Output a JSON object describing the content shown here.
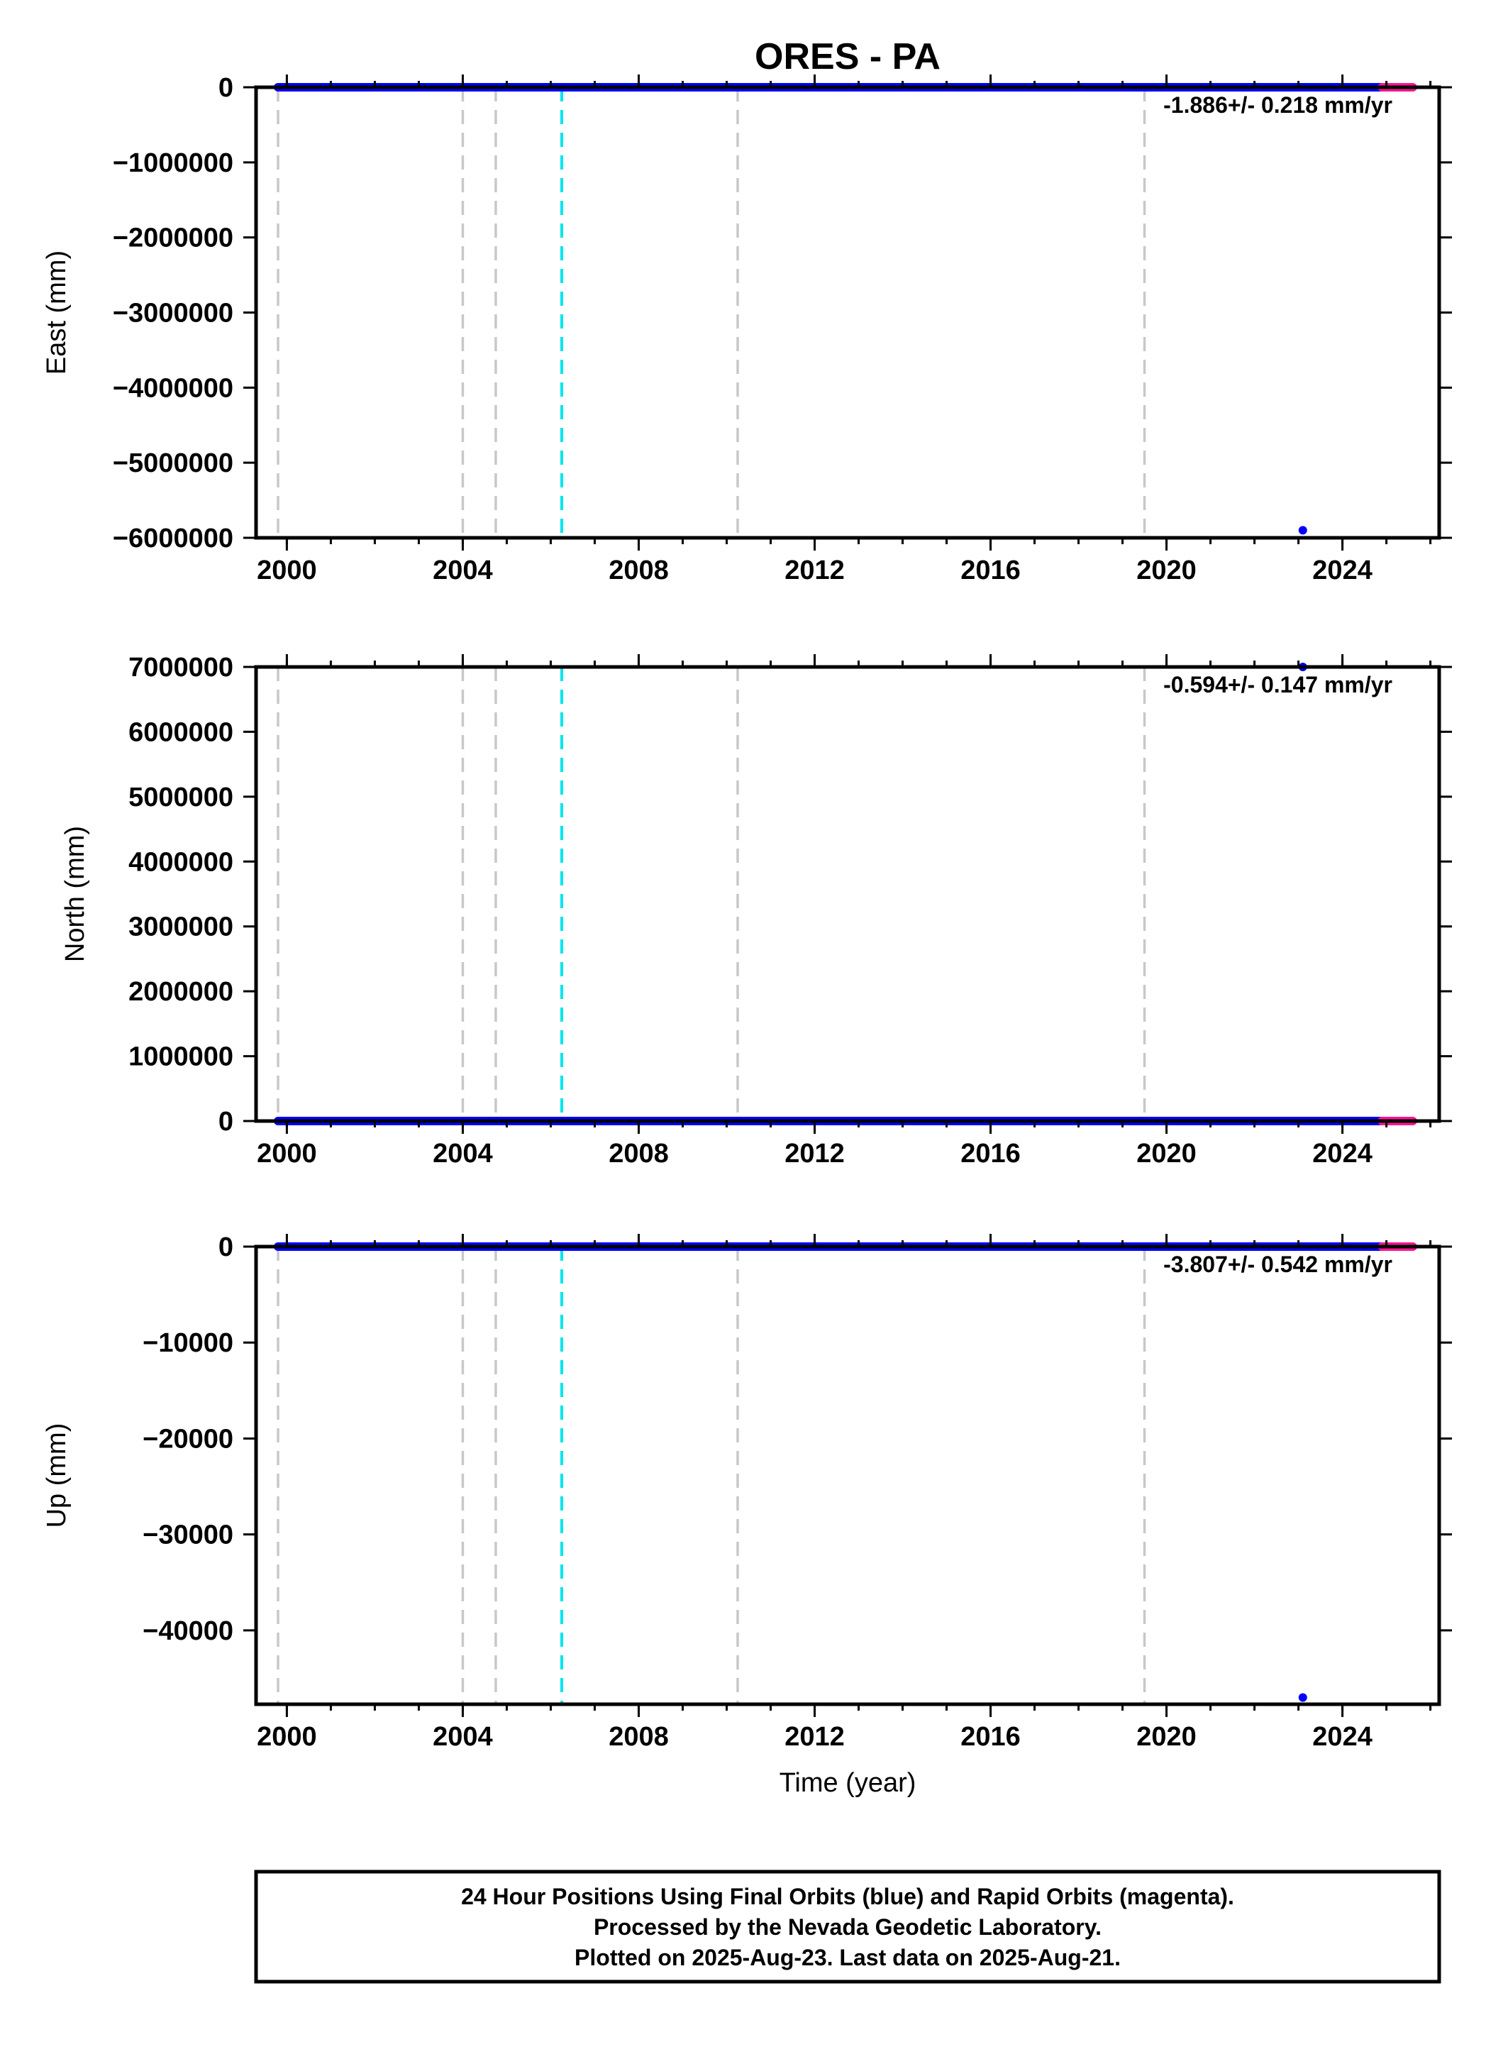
{
  "chart_data": [
    {
      "type": "scatter",
      "title": "ORES - PA",
      "xlabel": "",
      "ylabel": "East (mm)",
      "xlim": [
        1999.3,
        2026.2
      ],
      "ylim": [
        -6000000,
        0
      ],
      "x_ticks": [
        2000,
        2004,
        2008,
        2012,
        2016,
        2020,
        2024
      ],
      "x_tick_labels": [
        "2000",
        "2004",
        "2008",
        "2012",
        "2016",
        "2020",
        "2024"
      ],
      "y_ticks": [
        0,
        -1000000,
        -2000000,
        -3000000,
        -4000000,
        -5000000,
        -6000000
      ],
      "y_tick_labels": [
        "0",
        "−1000000",
        "−2000000",
        "−3000000",
        "−4000000",
        "−5000000",
        "−6000000"
      ],
      "rate_text": "-1.886+/- 0.218 mm/yr",
      "series": [
        {
          "name": "Final Orbits",
          "color": "#0000ff",
          "x_start": 1999.8,
          "x_end": 2025.3,
          "y": 0,
          "outliers": [
            {
              "x": 2023.1,
              "y": -5900000
            }
          ]
        },
        {
          "name": "Rapid Orbits",
          "color": "#ff1493",
          "x_start": 2024.9,
          "x_end": 2025.6,
          "y": 0
        }
      ],
      "vlines": [
        {
          "x": 1999.8,
          "color": "#c8c8c8"
        },
        {
          "x": 2004.0,
          "color": "#c8c8c8"
        },
        {
          "x": 2004.75,
          "color": "#c8c8c8"
        },
        {
          "x": 2006.25,
          "color": "#00e5ee"
        },
        {
          "x": 2010.25,
          "color": "#c8c8c8"
        },
        {
          "x": 2019.5,
          "color": "#c8c8c8"
        }
      ]
    },
    {
      "type": "scatter",
      "title": "",
      "xlabel": "",
      "ylabel": "North (mm)",
      "xlim": [
        1999.3,
        2026.2
      ],
      "ylim": [
        0,
        7000000
      ],
      "x_ticks": [
        2000,
        2004,
        2008,
        2012,
        2016,
        2020,
        2024
      ],
      "x_tick_labels": [
        "2000",
        "2004",
        "2008",
        "2012",
        "2016",
        "2020",
        "2024"
      ],
      "y_ticks": [
        7000000,
        6000000,
        5000000,
        4000000,
        3000000,
        2000000,
        1000000,
        0
      ],
      "y_tick_labels": [
        "7000000",
        "6000000",
        "5000000",
        "4000000",
        "3000000",
        "2000000",
        "1000000",
        "0"
      ],
      "rate_text": "-0.594+/- 0.147 mm/yr",
      "series": [
        {
          "name": "Final Orbits",
          "color": "#0000ff",
          "x_start": 1999.8,
          "x_end": 2025.3,
          "y": 0,
          "outliers": [
            {
              "x": 2023.1,
              "y": 7000000
            }
          ]
        },
        {
          "name": "Rapid Orbits",
          "color": "#ff1493",
          "x_start": 2024.9,
          "x_end": 2025.6,
          "y": 0
        }
      ],
      "vlines": [
        {
          "x": 1999.8,
          "color": "#c8c8c8"
        },
        {
          "x": 2004.0,
          "color": "#c8c8c8"
        },
        {
          "x": 2004.75,
          "color": "#c8c8c8"
        },
        {
          "x": 2006.25,
          "color": "#00e5ee"
        },
        {
          "x": 2010.25,
          "color": "#c8c8c8"
        },
        {
          "x": 2019.5,
          "color": "#c8c8c8"
        }
      ]
    },
    {
      "type": "scatter",
      "title": "",
      "xlabel": "Time (year)",
      "ylabel": "Up (mm)",
      "xlim": [
        1999.3,
        2026.2
      ],
      "ylim": [
        -47700,
        0
      ],
      "x_ticks": [
        2000,
        2004,
        2008,
        2012,
        2016,
        2020,
        2024
      ],
      "x_tick_labels": [
        "2000",
        "2004",
        "2008",
        "2012",
        "2016",
        "2020",
        "2024"
      ],
      "y_ticks": [
        0,
        -10000,
        -20000,
        -30000,
        -40000
      ],
      "y_tick_labels": [
        "0",
        "−10000",
        "−20000",
        "−30000",
        "−40000"
      ],
      "rate_text": "-3.807+/- 0.542 mm/yr",
      "series": [
        {
          "name": "Final Orbits",
          "color": "#0000ff",
          "x_start": 1999.8,
          "x_end": 2025.3,
          "y": 0,
          "outliers": [
            {
              "x": 2023.1,
              "y": -47000
            }
          ]
        },
        {
          "name": "Rapid Orbits",
          "color": "#ff1493",
          "x_start": 2024.9,
          "x_end": 2025.6,
          "y": 0
        }
      ],
      "vlines": [
        {
          "x": 1999.8,
          "color": "#c8c8c8"
        },
        {
          "x": 2004.0,
          "color": "#c8c8c8"
        },
        {
          "x": 2004.75,
          "color": "#c8c8c8"
        },
        {
          "x": 2006.25,
          "color": "#00e5ee"
        },
        {
          "x": 2010.25,
          "color": "#c8c8c8"
        },
        {
          "x": 2019.5,
          "color": "#c8c8c8"
        }
      ]
    }
  ],
  "caption": {
    "line1": "24 Hour Positions Using Final Orbits (blue) and Rapid Orbits (magenta).",
    "line2": "Processed by the Nevada Geodetic Laboratory.",
    "line3": "Plotted on 2025-Aug-23. Last data on 2025-Aug-21."
  }
}
